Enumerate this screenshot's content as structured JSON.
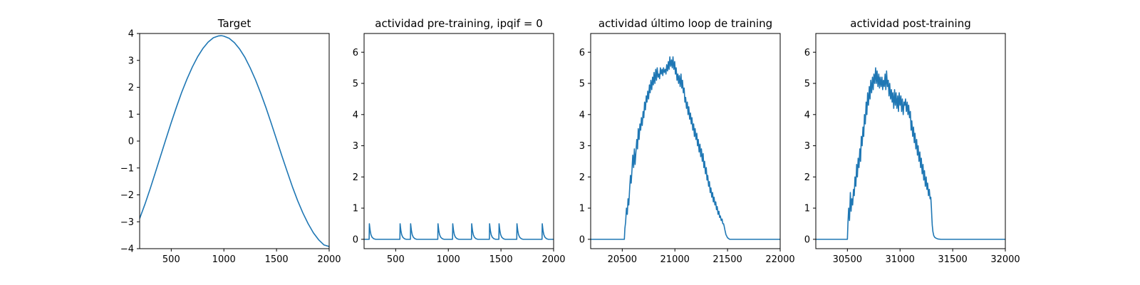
{
  "figure": {
    "background": "#ffffff",
    "line_color": "#1f77b4"
  },
  "chart_data": [
    {
      "type": "line",
      "title": "Target",
      "xlim": [
        200,
        2000
      ],
      "ylim": [
        -4,
        4
      ],
      "xticks": [
        500,
        1000,
        1500,
        2000
      ],
      "yticks": [
        -4,
        -3,
        -2,
        -1,
        0,
        1,
        2,
        3,
        4
      ],
      "series": [
        {
          "x": [
            200,
            250,
            300,
            350,
            400,
            450,
            500,
            550,
            600,
            650,
            700,
            750,
            800,
            850,
            900,
            950,
            975,
            1000,
            1050,
            1100,
            1150,
            1200,
            1250,
            1300,
            1350,
            1400,
            1450,
            1500,
            1550,
            1600,
            1650,
            1700,
            1750,
            1800,
            1850,
            1900,
            1950,
            2000
          ],
          "y": [
            -2.88,
            -2.35,
            -1.77,
            -1.16,
            -0.54,
            0.08,
            0.69,
            1.27,
            1.82,
            2.31,
            2.75,
            3.13,
            3.44,
            3.68,
            3.84,
            3.91,
            3.92,
            3.9,
            3.82,
            3.66,
            3.42,
            3.11,
            2.72,
            2.28,
            1.78,
            1.24,
            0.66,
            0.06,
            -0.54,
            -1.12,
            -1.69,
            -2.21,
            -2.67,
            -3.07,
            -3.41,
            -3.67,
            -3.86,
            -3.92
          ]
        }
      ]
    },
    {
      "type": "line",
      "title": "actividad pre-training, ipqif = 0",
      "xlim": [
        200,
        2000
      ],
      "ylim": [
        -0.3,
        6.6
      ],
      "xticks": [
        500,
        1000,
        1500,
        2000
      ],
      "yticks": [
        0,
        1,
        2,
        3,
        4,
        5,
        6
      ],
      "series": [
        {
          "x": [
            200,
            248,
            250,
            254,
            258,
            265,
            275,
            290,
            310,
            540,
            542,
            546,
            550,
            557,
            567,
            582,
            600,
            640,
            642,
            646,
            650,
            657,
            667,
            682,
            700,
            900,
            902,
            906,
            910,
            917,
            927,
            942,
            960,
            1040,
            1042,
            1046,
            1050,
            1057,
            1067,
            1082,
            1100,
            1220,
            1222,
            1226,
            1230,
            1237,
            1247,
            1262,
            1280,
            1390,
            1392,
            1396,
            1400,
            1407,
            1417,
            1432,
            1450,
            1480,
            1482,
            1486,
            1490,
            1497,
            1507,
            1522,
            1540,
            1650,
            1652,
            1656,
            1660,
            1667,
            1677,
            1692,
            1710,
            1890,
            1892,
            1896,
            1900,
            1907,
            1917,
            1932,
            1950,
            2000
          ],
          "y": [
            0,
            0,
            0.5,
            0.38,
            0.27,
            0.15,
            0.07,
            0.02,
            0,
            0,
            0.5,
            0.38,
            0.27,
            0.15,
            0.07,
            0.02,
            0,
            0,
            0.5,
            0.38,
            0.27,
            0.15,
            0.07,
            0.02,
            0,
            0,
            0.5,
            0.38,
            0.27,
            0.15,
            0.07,
            0.02,
            0,
            0,
            0.5,
            0.38,
            0.27,
            0.15,
            0.07,
            0.02,
            0,
            0,
            0.5,
            0.38,
            0.27,
            0.15,
            0.07,
            0.02,
            0,
            0,
            0.5,
            0.38,
            0.27,
            0.15,
            0.07,
            0.02,
            0,
            0,
            0.5,
            0.38,
            0.27,
            0.15,
            0.07,
            0.02,
            0,
            0,
            0.5,
            0.38,
            0.27,
            0.15,
            0.07,
            0.02,
            0,
            0,
            0.5,
            0.38,
            0.27,
            0.15,
            0.07,
            0.02,
            0,
            0
          ]
        }
      ]
    },
    {
      "type": "line",
      "title": "actividad último loop de training",
      "xlim": [
        20200,
        22000
      ],
      "ylim": [
        -0.3,
        6.6
      ],
      "xticks": [
        20500,
        21000,
        21500,
        22000
      ],
      "yticks": [
        0,
        1,
        2,
        3,
        4,
        5,
        6
      ],
      "series": [
        {
          "x": [
            20200,
            20520,
            20525,
            20532,
            20540,
            20548,
            20555,
            20562,
            20570,
            20578,
            20585,
            20592,
            20600,
            20608,
            20615,
            20622,
            20630,
            20638,
            20645,
            20652,
            20660,
            20668,
            20675,
            20682,
            20690,
            20698,
            20705,
            20712,
            20720,
            20728,
            20735,
            20742,
            20750,
            20758,
            20765,
            20772,
            20780,
            20788,
            20795,
            20802,
            20810,
            20818,
            20825,
            20832,
            20840,
            20848,
            20855,
            20862,
            20870,
            20878,
            20885,
            20892,
            20900,
            20908,
            20915,
            20922,
            20930,
            20938,
            20945,
            20952,
            20960,
            20968,
            20975,
            20982,
            20990,
            20998,
            21005,
            21012,
            21020,
            21028,
            21035,
            21042,
            21050,
            21058,
            21065,
            21072,
            21080,
            21088,
            21095,
            21102,
            21110,
            21118,
            21125,
            21132,
            21140,
            21148,
            21155,
            21162,
            21170,
            21178,
            21185,
            21192,
            21200,
            21208,
            21215,
            21222,
            21230,
            21238,
            21245,
            21252,
            21260,
            21268,
            21275,
            21282,
            21290,
            21298,
            21305,
            21312,
            21320,
            21328,
            21335,
            21342,
            21350,
            21358,
            21365,
            21372,
            21380,
            21388,
            21395,
            21402,
            21410,
            21418,
            21425,
            21432,
            21440,
            21448,
            21455,
            21462,
            21468,
            21475,
            21485,
            21500,
            21520,
            22000
          ],
          "y": [
            0,
            0,
            0.35,
            0.55,
            1.0,
            0.8,
            1.3,
            1.1,
            1.6,
            2.05,
            1.8,
            2.2,
            2.7,
            2.3,
            2.9,
            2.4,
            2.8,
            3.2,
            2.9,
            3.55,
            3.2,
            3.7,
            3.5,
            3.9,
            3.65,
            4.1,
            3.9,
            4.4,
            4.15,
            4.6,
            4.4,
            4.75,
            4.5,
            4.95,
            4.7,
            5.1,
            4.8,
            5.2,
            4.95,
            5.35,
            5.0,
            5.45,
            5.1,
            5.5,
            5.2,
            5.3,
            5.15,
            5.5,
            5.3,
            5.45,
            5.25,
            5.5,
            5.35,
            5.45,
            5.3,
            5.6,
            5.4,
            5.7,
            5.45,
            5.85,
            5.55,
            5.75,
            5.5,
            5.85,
            5.45,
            5.7,
            5.3,
            5.5,
            5.1,
            5.3,
            5.0,
            5.25,
            4.9,
            5.3,
            4.85,
            5.1,
            4.7,
            4.85,
            4.4,
            4.55,
            4.2,
            4.4,
            4.0,
            4.25,
            3.85,
            4.05,
            3.7,
            3.9,
            3.5,
            3.7,
            3.3,
            3.55,
            3.2,
            3.4,
            3.0,
            3.2,
            2.8,
            3.05,
            2.65,
            2.9,
            2.5,
            2.75,
            2.3,
            2.5,
            2.1,
            2.3,
            1.9,
            2.05,
            1.7,
            1.85,
            1.5,
            1.65,
            1.35,
            1.5,
            1.2,
            1.35,
            1.1,
            1.2,
            0.95,
            1.05,
            0.8,
            0.9,
            0.7,
            0.75,
            0.6,
            0.65,
            0.5,
            0.5,
            0.42,
            0.3,
            0.15,
            0.05,
            0,
            0
          ]
        }
      ]
    },
    {
      "type": "line",
      "title": "actividad post-training",
      "xlim": [
        30200,
        32000
      ],
      "ylim": [
        -0.3,
        6.6
      ],
      "xticks": [
        30500,
        31000,
        31500,
        32000
      ],
      "yticks": [
        0,
        1,
        2,
        3,
        4,
        5,
        6
      ],
      "series": [
        {
          "x": [
            30200,
            30500,
            30505,
            30512,
            30520,
            30528,
            30535,
            30542,
            30550,
            30558,
            30565,
            30572,
            30580,
            30588,
            30595,
            30602,
            30610,
            30618,
            30625,
            30632,
            30640,
            30648,
            30655,
            30662,
            30670,
            30678,
            30685,
            30692,
            30700,
            30708,
            30715,
            30722,
            30730,
            30738,
            30745,
            30752,
            30760,
            30768,
            30775,
            30782,
            30790,
            30798,
            30805,
            30812,
            30820,
            30828,
            30835,
            30842,
            30850,
            30858,
            30865,
            30872,
            30880,
            30888,
            30895,
            30902,
            30910,
            30918,
            30925,
            30932,
            30940,
            30948,
            30955,
            30962,
            30970,
            30978,
            30985,
            30992,
            31000,
            31008,
            31015,
            31022,
            31030,
            31038,
            31045,
            31052,
            31060,
            31068,
            31075,
            31082,
            31090,
            31098,
            31105,
            31112,
            31120,
            31128,
            31135,
            31142,
            31150,
            31158,
            31165,
            31172,
            31180,
            31188,
            31195,
            31202,
            31210,
            31218,
            31225,
            31232,
            31240,
            31248,
            31255,
            31262,
            31270,
            31278,
            31285,
            31292,
            31298,
            31302,
            31306,
            31312,
            31320,
            31330,
            31345,
            31360,
            31390,
            32000
          ],
          "y": [
            0,
            0,
            0.5,
            1.0,
            0.6,
            1.5,
            0.9,
            1.3,
            1.1,
            1.6,
            1.4,
            2.0,
            1.7,
            2.4,
            2.0,
            2.6,
            2.3,
            2.9,
            2.5,
            3.3,
            3.0,
            3.6,
            3.3,
            4.0,
            3.7,
            4.4,
            4.0,
            4.7,
            4.3,
            4.9,
            4.5,
            5.1,
            4.7,
            5.2,
            4.8,
            5.3,
            5.0,
            5.5,
            5.0,
            5.4,
            4.9,
            5.3,
            4.85,
            5.2,
            4.9,
            5.2,
            4.8,
            5.1,
            4.9,
            5.3,
            4.8,
            5.4,
            4.9,
            5.1,
            4.6,
            5.0,
            4.5,
            4.8,
            4.4,
            4.7,
            4.2,
            4.8,
            4.3,
            4.7,
            4.2,
            4.6,
            4.1,
            4.7,
            4.3,
            4.6,
            4.1,
            4.5,
            4.0,
            4.4,
            4.3,
            4.5,
            4.1,
            4.4,
            4.0,
            4.3,
            3.9,
            4.1,
            3.5,
            3.8,
            3.3,
            3.6,
            3.1,
            3.4,
            2.9,
            3.2,
            2.7,
            3.0,
            2.5,
            2.8,
            2.3,
            2.6,
            2.1,
            2.4,
            1.9,
            2.2,
            1.7,
            2.0,
            1.6,
            1.8,
            1.4,
            1.6,
            1.3,
            1.35,
            1.0,
            0.7,
            0.45,
            0.25,
            0.12,
            0.06,
            0.03,
            0.01,
            0,
            0
          ]
        }
      ]
    }
  ]
}
